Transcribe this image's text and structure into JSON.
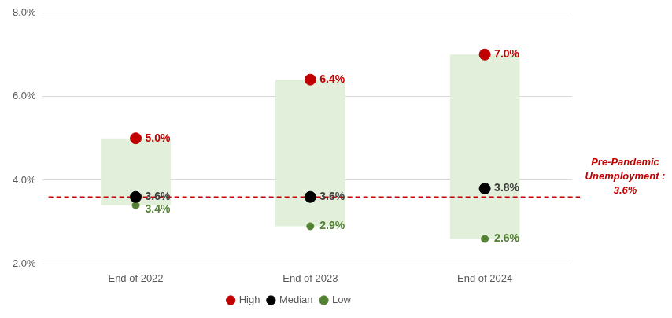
{
  "chart_data": {
    "type": "range",
    "categories": [
      "End of 2022",
      "End of 2023",
      "End of 2024"
    ],
    "color": "#e2efda",
    "series": [
      {
        "name": "High",
        "color": "#c00000",
        "marker": "circle",
        "values": [
          5.0,
          6.4,
          7.0
        ],
        "value_labels": [
          "5.0%",
          "6.4%",
          "7.0%"
        ]
      },
      {
        "name": "Median",
        "color": "#000000",
        "marker": "circle",
        "values": [
          3.6,
          3.6,
          3.8
        ],
        "value_labels": [
          "3.6%",
          "3.6%",
          "3.8%"
        ]
      },
      {
        "name": "Low",
        "color": "#548235",
        "marker": "circle",
        "values": [
          3.4,
          2.9,
          2.6
        ],
        "value_labels": [
          "3.4%",
          "2.9%",
          "2.6%"
        ]
      }
    ],
    "ylim": [
      2,
      8
    ],
    "yticks": [
      {
        "value": 2,
        "label": "2.0%"
      },
      {
        "value": 4,
        "label": "4.0%"
      },
      {
        "value": 6,
        "label": "6.0%"
      },
      {
        "value": 8,
        "label": "8.0%"
      }
    ],
    "grid": true,
    "legend": "bottom",
    "data_labels": true,
    "reference_line": {
      "value": 3.6,
      "color": "#c00000",
      "line_style": "dashed",
      "label": [
        "Pre-Pandemic",
        "Unemployment :",
        "3.6%"
      ]
    }
  }
}
